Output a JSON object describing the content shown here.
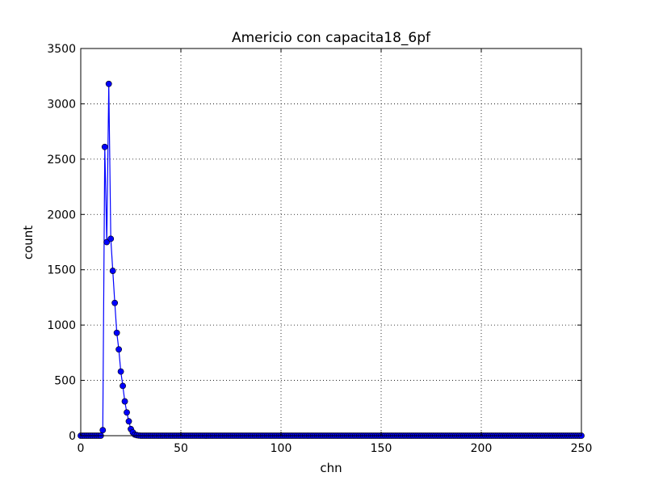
{
  "chart_data": {
    "type": "line",
    "title": "Americio con capacita18_6pf",
    "xlabel": "chn",
    "ylabel": "count",
    "xlim": [
      0,
      250
    ],
    "ylim": [
      0,
      3500
    ],
    "xticks": [
      0,
      50,
      100,
      150,
      200,
      250
    ],
    "yticks": [
      0,
      500,
      1000,
      1500,
      2000,
      2500,
      3000,
      3500
    ],
    "grid": true,
    "color": "#0000ff",
    "series": [
      {
        "values": [
          0,
          0,
          0,
          0,
          0,
          0,
          0,
          0,
          0,
          0,
          0,
          50,
          2610,
          1750,
          3180,
          1780,
          1490,
          1200,
          930,
          780,
          580,
          450,
          310,
          210,
          130,
          60,
          30,
          10,
          5,
          2
        ]
      }
    ]
  }
}
